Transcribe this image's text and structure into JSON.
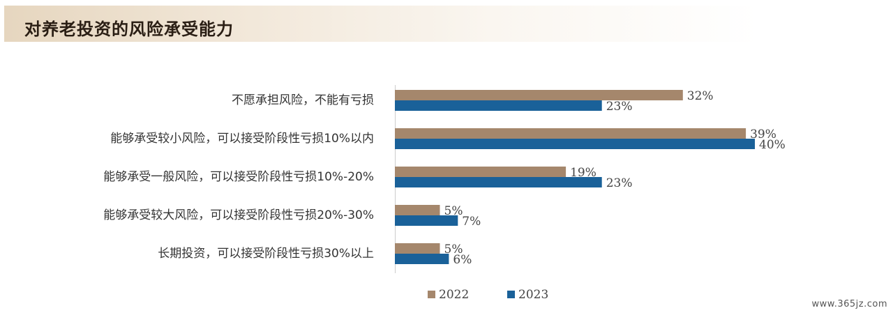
{
  "header": {
    "title": "对养老投资的风险承受能力"
  },
  "watermark": "www.365jz.com",
  "chart_data": {
    "type": "bar",
    "orientation": "horizontal",
    "title": "对养老投资的风险承受能力",
    "xlim": [
      0,
      40
    ],
    "grid": false,
    "legend_position": "bottom",
    "categories": [
      "不愿承担风险，不能有亏损",
      "能够承受较小风险，可以接受阶段性亏损10%以内",
      "能够承受一般风险，可以接受阶段性亏损10%-20%",
      "能够承受较大风险，可以接受阶段性亏损20%-30%",
      "长期投资，可以接受阶段性亏损30%以上"
    ],
    "series": [
      {
        "name": "2022",
        "color": "#a5876c",
        "values": [
          32,
          39,
          19,
          5,
          5
        ],
        "labels": [
          "32%",
          "39%",
          "19%",
          "5%",
          "5%"
        ]
      },
      {
        "name": "2023",
        "color": "#1a6199",
        "values": [
          23,
          40,
          23,
          7,
          6
        ],
        "labels": [
          "23%",
          "40%",
          "23%",
          "7%",
          "6%"
        ]
      }
    ]
  }
}
